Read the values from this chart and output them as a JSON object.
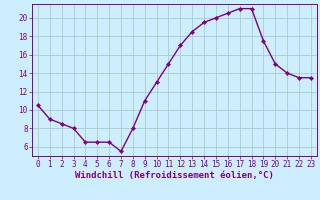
{
  "x": [
    0,
    1,
    2,
    3,
    4,
    5,
    6,
    7,
    8,
    9,
    10,
    11,
    12,
    13,
    14,
    15,
    16,
    17,
    18,
    19,
    20,
    21,
    22,
    23
  ],
  "y": [
    10.5,
    9.0,
    8.5,
    8.0,
    6.5,
    6.5,
    6.5,
    5.5,
    8.0,
    11.0,
    13.0,
    15.0,
    17.0,
    18.5,
    19.5,
    20.0,
    20.5,
    21.0,
    21.0,
    17.5,
    15.0,
    14.0,
    13.5,
    13.5
  ],
  "line_color": "#800080",
  "marker": "D",
  "marker_size": 2.2,
  "background_color": "#cceeff",
  "grid_color": "#aacccc",
  "xlabel": "Windchill (Refroidissement éolien,°C)",
  "xlim": [
    -0.5,
    23.5
  ],
  "ylim": [
    5.0,
    21.5
  ],
  "yticks": [
    6,
    8,
    10,
    12,
    14,
    16,
    18,
    20
  ],
  "xticks": [
    0,
    1,
    2,
    3,
    4,
    5,
    6,
    7,
    8,
    9,
    10,
    11,
    12,
    13,
    14,
    15,
    16,
    17,
    18,
    19,
    20,
    21,
    22,
    23
  ],
  "tick_label_color": "#800080",
  "tick_label_size": 5.5,
  "xlabel_size": 6.5,
  "xlabel_color": "#800080",
  "spine_color": "#800080",
  "line_width": 1.0
}
